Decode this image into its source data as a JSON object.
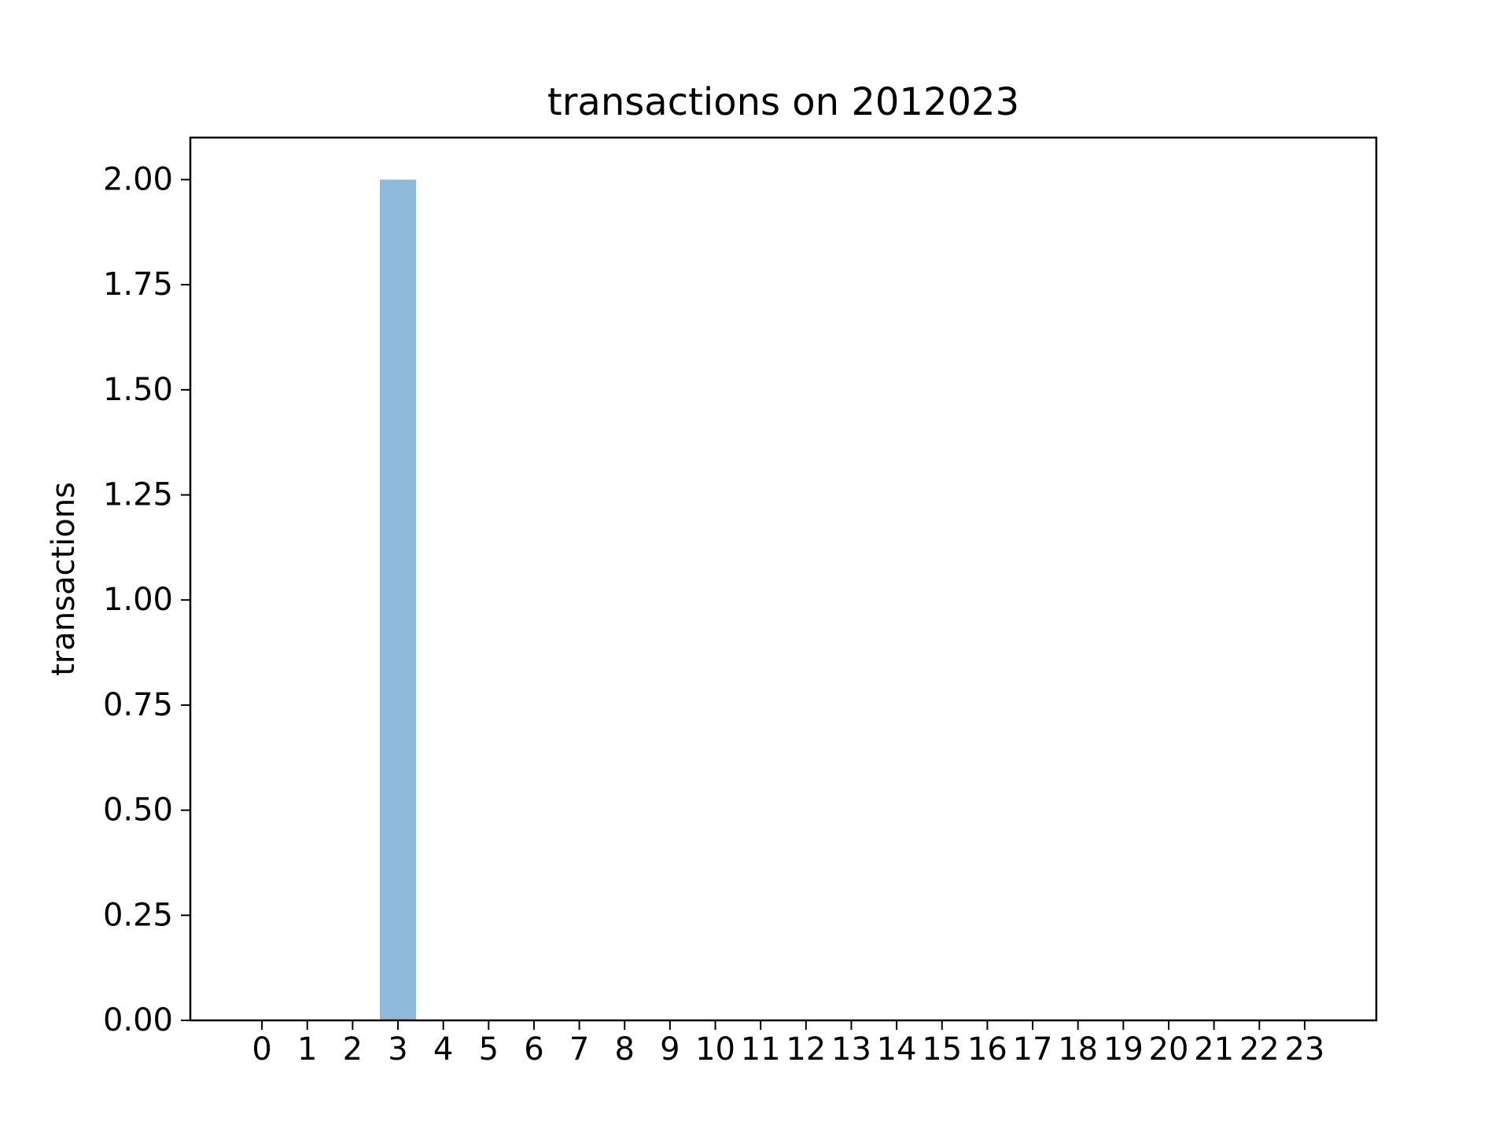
{
  "chart_data": {
    "type": "bar",
    "title": "transactions on 2012023",
    "xlabel": "",
    "ylabel": "transactions",
    "categories": [
      "0",
      "1",
      "2",
      "3",
      "4",
      "5",
      "6",
      "7",
      "8",
      "9",
      "10",
      "11",
      "12",
      "13",
      "14",
      "15",
      "16",
      "17",
      "18",
      "19",
      "20",
      "21",
      "22",
      "23"
    ],
    "values": [
      0,
      0,
      0,
      2,
      0,
      0,
      0,
      0,
      0,
      0,
      0,
      0,
      0,
      0,
      0,
      0,
      0,
      0,
      0,
      0,
      0,
      0,
      0,
      0
    ],
    "ylim": [
      0,
      2.1
    ],
    "xlim": [
      -1.58,
      24.58
    ],
    "yticks": [
      0,
      0.25,
      0.5,
      0.75,
      1.0,
      1.25,
      1.5,
      1.75,
      2.0
    ],
    "ytick_labels": [
      "0.00",
      "0.25",
      "0.50",
      "0.75",
      "1.00",
      "1.25",
      "1.50",
      "1.75",
      "2.00"
    ],
    "bar_color": "#8fb9d9",
    "grid": false,
    "legend": "none"
  }
}
